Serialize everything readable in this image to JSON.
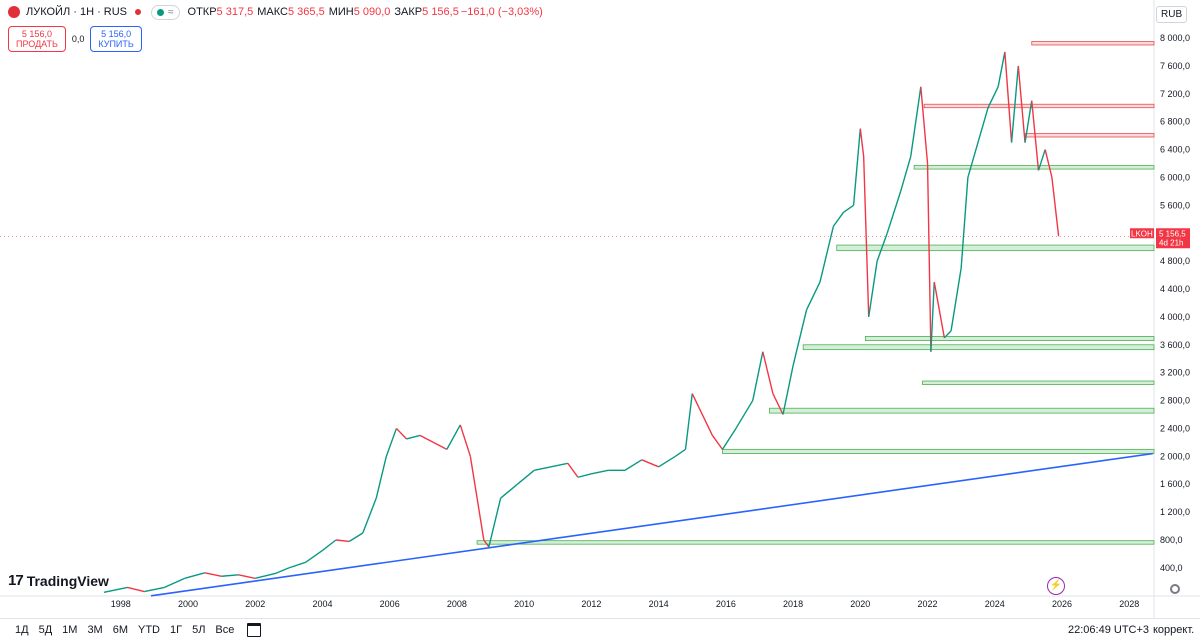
{
  "header": {
    "title": "ЛУКОЙЛ · 1Н · RUS",
    "open_label": "ОТКР",
    "open_value": "5 317,5",
    "high_label": "МАКС",
    "high_value": "5 365,5",
    "low_label": "МИН",
    "low_value": "5 090,0",
    "close_label": "ЗАКР",
    "close_value": "5 156,5",
    "change_value": "−161,0 (−3,03%)",
    "currency": "RUB"
  },
  "trade": {
    "sell_price": "5 156,0",
    "sell_label": "ПРОДАТЬ",
    "spread": "0,0",
    "buy_price": "5 156,0",
    "buy_label": "КУПИТЬ"
  },
  "price_tag": {
    "symbol": "LKOH",
    "price": "5 156,5",
    "countdown": "4d 21h"
  },
  "toolbar": {
    "timeframes": [
      "1Д",
      "5Д",
      "1М",
      "3М",
      "6М",
      "YTD",
      "1Г",
      "5Л",
      "Все"
    ],
    "clock": "22:06:49 UTC+3",
    "adjust": "коррект."
  },
  "logo": {
    "text": "TradingView",
    "mark": "17"
  },
  "colors": {
    "up": "#089981",
    "down": "#f23645",
    "trend": "#2962ff",
    "zone_green": "#b7e4c0",
    "zone_red": "#f7c2c2"
  },
  "chart_data": {
    "type": "line",
    "title": "ЛУКОЙЛ · 1Н · RUS",
    "xlabel": "",
    "ylabel": "",
    "x_ticks": [
      1998,
      2000,
      2002,
      2004,
      2006,
      2008,
      2010,
      2012,
      2014,
      2016,
      2018,
      2020,
      2022,
      2024,
      2026,
      2028
    ],
    "y_ticks": [
      "400,0",
      "800,0",
      "1 200,0",
      "1 600,0",
      "2 000,0",
      "2 400,0",
      "2 800,0",
      "3 200,0",
      "3 600,0",
      "4 000,0",
      "4 400,0",
      "4 800,0",
      "5 200,0",
      "5 600,0",
      "6 000,0",
      "6 400,0",
      "6 800,0",
      "7 200,0",
      "7 600,0",
      "8 000,0"
    ],
    "y_tick_values": [
      400,
      800,
      1200,
      1600,
      2000,
      2400,
      2800,
      3200,
      3600,
      4000,
      4400,
      4800,
      5200,
      5600,
      6000,
      6400,
      6800,
      7200,
      7600,
      8000
    ],
    "xlim": [
      1997.3,
      2029.0
    ],
    "ylim": [
      0,
      8200
    ],
    "series": [
      {
        "x": [
          1997.5,
          1998.2,
          1998.7,
          1999.3,
          1999.9,
          2000.5,
          2001.0,
          2001.5,
          2002.0,
          2002.6,
          2003.0,
          2003.5,
          2004.0,
          2004.4,
          2004.8,
          2005.2,
          2005.6,
          2005.9,
          2006.2,
          2006.5,
          2006.9,
          2007.3,
          2007.7,
          2008.1,
          2008.4,
          2008.6,
          2008.8,
          2008.95,
          2009.3,
          2009.8,
          2010.3,
          2010.8,
          2011.3,
          2011.6,
          2012.0,
          2012.5,
          2013.0,
          2013.5,
          2014.0,
          2014.5,
          2014.8,
          2015.0,
          2015.2,
          2015.6,
          2015.9,
          2016.3,
          2016.8,
          2017.1,
          2017.4,
          2017.7,
          2018.0,
          2018.4,
          2018.8,
          2019.2,
          2019.5,
          2019.8,
          2020.0,
          2020.1,
          2020.25,
          2020.5,
          2020.8,
          2021.2,
          2021.5,
          2021.8,
          2022.0,
          2022.1,
          2022.2,
          2022.5,
          2022.7,
          2023.0,
          2023.2,
          2023.5,
          2023.8,
          2024.1,
          2024.3,
          2024.5,
          2024.7,
          2024.9,
          2025.1,
          2025.3,
          2025.5,
          2025.7,
          2025.9
        ],
        "y": [
          50,
          120,
          60,
          120,
          250,
          330,
          280,
          300,
          250,
          320,
          400,
          480,
          650,
          800,
          780,
          900,
          1400,
          2000,
          2400,
          2250,
          2300,
          2200,
          2100,
          2450,
          2000,
          1400,
          800,
          700,
          1400,
          1600,
          1800,
          1850,
          1900,
          1700,
          1750,
          1800,
          1800,
          1950,
          1850,
          2000,
          2100,
          2900,
          2700,
          2300,
          2100,
          2400,
          2800,
          3500,
          2900,
          2600,
          3300,
          4100,
          4500,
          5300,
          5500,
          5600,
          6700,
          6300,
          4000,
          4800,
          5200,
          5800,
          6300,
          7300,
          6200,
          3500,
          4500,
          3700,
          3800,
          4700,
          6000,
          6500,
          7000,
          7300,
          7800,
          6500,
          7600,
          6500,
          7100,
          6100,
          6400,
          6000,
          5156.5
        ]
      }
    ],
    "zones": [
      {
        "from": 2025.1,
        "y_low": 7900,
        "y_high": 7950,
        "kind": "resistance"
      },
      {
        "from": 2021.9,
        "y_low": 7000,
        "y_high": 7050,
        "kind": "resistance"
      },
      {
        "from": 2024.9,
        "y_low": 6580,
        "y_high": 6630,
        "kind": "resistance"
      },
      {
        "from": 2021.6,
        "y_low": 6120,
        "y_high": 6170,
        "kind": "support"
      },
      {
        "from": 2019.3,
        "y_low": 4950,
        "y_high": 5030,
        "kind": "support"
      },
      {
        "from": 2020.15,
        "y_low": 3660,
        "y_high": 3720,
        "kind": "support"
      },
      {
        "from": 2018.3,
        "y_low": 3530,
        "y_high": 3600,
        "kind": "support"
      },
      {
        "from": 2021.85,
        "y_low": 3030,
        "y_high": 3080,
        "kind": "support"
      },
      {
        "from": 2017.3,
        "y_low": 2620,
        "y_high": 2690,
        "kind": "support"
      },
      {
        "from": 2015.9,
        "y_low": 2040,
        "y_high": 2100,
        "kind": "support"
      },
      {
        "from": 2008.6,
        "y_low": 740,
        "y_high": 790,
        "kind": "support"
      }
    ],
    "trendline": {
      "x1": 1998.9,
      "y1": 0,
      "x2": 2028.7,
      "y2": 2040
    },
    "last_price": 5156.5
  }
}
